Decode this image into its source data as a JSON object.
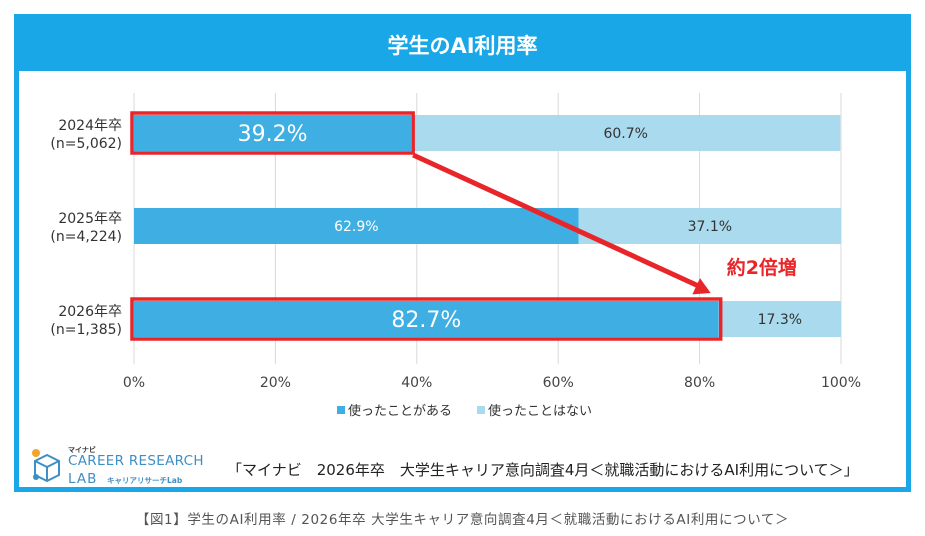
{
  "chart_data": {
    "type": "bar",
    "orientation": "horizontal",
    "stacked": true,
    "title": "学生のAI利用率",
    "categories": [
      {
        "label": "2024年卒",
        "n": "(n=5,062)"
      },
      {
        "label": "2025年卒",
        "n": "(n=4,224)"
      },
      {
        "label": "2026年卒",
        "n": "(n=1,385)"
      }
    ],
    "series": [
      {
        "name": "使ったことがある",
        "color": "#3FAEE3",
        "values": [
          39.2,
          62.9,
          82.7
        ],
        "labels": [
          "39.2%",
          "62.9%",
          "82.7%"
        ]
      },
      {
        "name": "使ったことはない",
        "color": "#A9DAEE",
        "values": [
          60.7,
          37.1,
          17.3
        ],
        "labels": [
          "60.7%",
          "37.1%",
          "17.3%"
        ]
      }
    ],
    "xlim": [
      0,
      100
    ],
    "xticks": [
      "0%",
      "20%",
      "40%",
      "60%",
      "80%",
      "100%"
    ],
    "grid": true,
    "legend_position": "bottom",
    "annotation": {
      "text": "約2倍増",
      "color": "#E8262A"
    },
    "highlighted_categories": [
      "2024年卒",
      "2026年卒"
    ]
  },
  "header": {
    "title": "学生のAI利用率"
  },
  "logo": {
    "small": "マイナビ",
    "line1": "CAREER RESEARCH",
    "line2": "LAB",
    "kana": "キャリアリサーチLab"
  },
  "source": "「マイナビ　2026年卒　大学生キャリア意向調査4月＜就職活動におけるAI利用について＞」",
  "caption": "【図1】学生のAI利用率 / 2026年卒 大学生キャリア意向調査4月＜就職活動におけるAI利用について＞"
}
